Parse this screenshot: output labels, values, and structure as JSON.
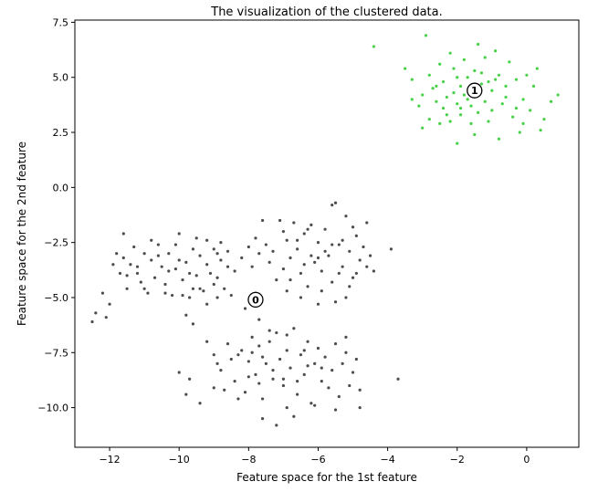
{
  "chart_data": {
    "type": "scatter",
    "title": "The visualization of the clustered data.",
    "xlabel": "Feature space for the 1st feature",
    "ylabel": "Feature space for the 2nd feature",
    "xlim": [
      -13.0,
      1.5
    ],
    "ylim": [
      -11.8,
      7.6
    ],
    "xticks": [
      -12,
      -10,
      -8,
      -6,
      -4,
      -2,
      0
    ],
    "xtick_labels": [
      "−12",
      "−10",
      "−8",
      "−6",
      "−4",
      "−2",
      "0"
    ],
    "yticks": [
      -10.0,
      -7.5,
      -5.0,
      -2.5,
      0.0,
      2.5,
      5.0,
      7.5
    ],
    "ytick_labels": [
      "−10.0",
      "−7.5",
      "−5.0",
      "−2.5",
      "0.0",
      "2.5",
      "5.0",
      "7.5"
    ],
    "grid": false,
    "series": [
      {
        "color": "#3a3a3a",
        "points": [
          [
            -12.5,
            -6.1
          ],
          [
            -12.4,
            -5.7
          ],
          [
            -12.2,
            -4.8
          ],
          [
            -12.1,
            -5.9
          ],
          [
            -12.0,
            -5.3
          ],
          [
            -11.9,
            -3.5
          ],
          [
            -11.8,
            -3.0
          ],
          [
            -11.7,
            -3.9
          ],
          [
            -11.6,
            -3.2
          ],
          [
            -11.5,
            -4.6
          ],
          [
            -11.4,
            -3.5
          ],
          [
            -11.3,
            -2.7
          ],
          [
            -11.2,
            -3.9
          ],
          [
            -11.1,
            -4.3
          ],
          [
            -11.0,
            -3.0
          ],
          [
            -10.9,
            -4.8
          ],
          [
            -10.8,
            -3.3
          ],
          [
            -10.7,
            -4.1
          ],
          [
            -10.6,
            -2.6
          ],
          [
            -10.5,
            -3.6
          ],
          [
            -10.4,
            -4.4
          ],
          [
            -10.3,
            -3.0
          ],
          [
            -10.2,
            -4.9
          ],
          [
            -10.1,
            -3.7
          ],
          [
            -10.0,
            -2.1
          ],
          [
            -9.9,
            -4.2
          ],
          [
            -9.8,
            -3.4
          ],
          [
            -9.7,
            -5.0
          ],
          [
            -9.6,
            -2.8
          ],
          [
            -9.5,
            -4.0
          ],
          [
            -9.4,
            -3.1
          ],
          [
            -9.3,
            -4.7
          ],
          [
            -9.2,
            -2.4
          ],
          [
            -9.1,
            -3.9
          ],
          [
            -9.0,
            -4.4
          ],
          [
            -8.9,
            -3.0
          ],
          [
            -8.8,
            -2.5
          ],
          [
            -8.7,
            -4.6
          ],
          [
            -8.6,
            -3.6
          ],
          [
            -8.5,
            -4.9
          ],
          [
            -11.6,
            -2.1
          ],
          [
            -11.5,
            -4.0
          ],
          [
            -11.2,
            -3.6
          ],
          [
            -11.0,
            -4.6
          ],
          [
            -10.8,
            -2.4
          ],
          [
            -10.6,
            -3.1
          ],
          [
            -10.4,
            -4.8
          ],
          [
            -10.3,
            -3.8
          ],
          [
            -10.1,
            -2.6
          ],
          [
            -10.0,
            -3.3
          ],
          [
            -9.9,
            -4.9
          ],
          [
            -9.7,
            -3.9
          ],
          [
            -9.5,
            -2.3
          ],
          [
            -9.4,
            -4.6
          ],
          [
            -9.2,
            -3.5
          ],
          [
            -9.0,
            -2.8
          ],
          [
            -8.9,
            -4.1
          ],
          [
            -8.8,
            -3.3
          ],
          [
            -8.6,
            -2.9
          ],
          [
            -8.4,
            -3.8
          ],
          [
            -8.2,
            -3.2
          ],
          [
            -8.0,
            -2.7
          ],
          [
            -7.9,
            -3.6
          ],
          [
            -7.7,
            -3.0
          ],
          [
            -7.5,
            -2.6
          ],
          [
            -7.4,
            -3.4
          ],
          [
            -7.3,
            -2.9
          ],
          [
            -7.1,
            -1.5
          ],
          [
            -7.0,
            -3.7
          ],
          [
            -6.9,
            -2.4
          ],
          [
            -6.8,
            -3.2
          ],
          [
            -6.7,
            -1.6
          ],
          [
            -6.6,
            -2.8
          ],
          [
            -6.5,
            -3.9
          ],
          [
            -6.4,
            -2.1
          ],
          [
            -6.3,
            -4.5
          ],
          [
            -6.2,
            -1.7
          ],
          [
            -6.1,
            -3.4
          ],
          [
            -6.0,
            -2.5
          ],
          [
            -5.9,
            -3.8
          ],
          [
            -5.8,
            -1.9
          ],
          [
            -5.7,
            -3.1
          ],
          [
            -5.6,
            -4.3
          ],
          [
            -5.5,
            -0.7
          ],
          [
            -5.4,
            -2.6
          ],
          [
            -5.3,
            -3.6
          ],
          [
            -5.2,
            -1.3
          ],
          [
            -5.1,
            -2.9
          ],
          [
            -5.0,
            -4.1
          ],
          [
            -4.9,
            -2.2
          ],
          [
            -4.8,
            -3.3
          ],
          [
            -4.7,
            -2.7
          ],
          [
            -4.6,
            -3.6
          ],
          [
            -4.5,
            -3.1
          ],
          [
            -4.4,
            -3.8
          ],
          [
            -4.6,
            -1.6
          ],
          [
            -5.0,
            -1.8
          ],
          [
            -5.2,
            -5.0
          ],
          [
            -5.6,
            -0.8
          ],
          [
            -6.0,
            -5.3
          ],
          [
            -6.5,
            -5.0
          ],
          [
            -6.9,
            -4.7
          ],
          [
            -7.2,
            -4.2
          ],
          [
            -7.6,
            -1.5
          ],
          [
            -7.8,
            -2.3
          ],
          [
            -6.2,
            -3.1
          ],
          [
            -5.8,
            -2.9
          ],
          [
            -6.4,
            -3.5
          ],
          [
            -5.4,
            -3.9
          ],
          [
            -6.0,
            -3.2
          ],
          [
            -5.6,
            -2.6
          ],
          [
            -6.6,
            -2.4
          ],
          [
            -6.8,
            -4.2
          ],
          [
            -5.3,
            -2.4
          ],
          [
            -4.9,
            -3.9
          ],
          [
            -5.1,
            -4.5
          ],
          [
            -6.3,
            -1.9
          ],
          [
            -7.0,
            -2.0
          ],
          [
            -5.9,
            -4.7
          ],
          [
            -5.5,
            -5.2
          ],
          [
            -9.6,
            -4.6
          ],
          [
            -9.8,
            -5.8
          ],
          [
            -9.6,
            -6.2
          ],
          [
            -9.2,
            -5.3
          ],
          [
            -8.9,
            -5.0
          ],
          [
            -8.1,
            -5.5
          ],
          [
            -7.8,
            -4.8
          ],
          [
            -7.7,
            -6.0
          ],
          [
            -3.9,
            -2.8
          ],
          [
            -3.7,
            -8.7
          ],
          [
            -9.2,
            -7.0
          ],
          [
            -9.0,
            -7.6
          ],
          [
            -8.8,
            -8.3
          ],
          [
            -8.6,
            -7.1
          ],
          [
            -8.4,
            -8.8
          ],
          [
            -8.2,
            -7.4
          ],
          [
            -8.1,
            -9.3
          ],
          [
            -8.0,
            -7.9
          ],
          [
            -7.9,
            -6.8
          ],
          [
            -7.8,
            -8.5
          ],
          [
            -7.7,
            -7.2
          ],
          [
            -7.6,
            -9.6
          ],
          [
            -7.5,
            -8.0
          ],
          [
            -7.4,
            -7.0
          ],
          [
            -7.3,
            -8.7
          ],
          [
            -7.2,
            -6.6
          ],
          [
            -7.1,
            -7.8
          ],
          [
            -7.0,
            -9.0
          ],
          [
            -6.9,
            -7.4
          ],
          [
            -6.8,
            -8.2
          ],
          [
            -6.7,
            -6.4
          ],
          [
            -6.6,
            -9.4
          ],
          [
            -6.5,
            -7.6
          ],
          [
            -6.4,
            -8.5
          ],
          [
            -6.3,
            -7.0
          ],
          [
            -6.2,
            -9.8
          ],
          [
            -6.1,
            -8.0
          ],
          [
            -6.0,
            -7.3
          ],
          [
            -5.9,
            -8.8
          ],
          [
            -5.8,
            -7.7
          ],
          [
            -5.7,
            -9.1
          ],
          [
            -5.6,
            -8.3
          ],
          [
            -5.5,
            -7.1
          ],
          [
            -5.4,
            -9.5
          ],
          [
            -5.3,
            -8.0
          ],
          [
            -5.2,
            -7.5
          ],
          [
            -5.1,
            -9.0
          ],
          [
            -5.0,
            -8.4
          ],
          [
            -4.9,
            -7.8
          ],
          [
            -4.8,
            -9.2
          ],
          [
            -4.8,
            -10.0
          ],
          [
            -5.5,
            -10.1
          ],
          [
            -6.1,
            -9.9
          ],
          [
            -6.7,
            -10.4
          ],
          [
            -7.2,
            -10.8
          ],
          [
            -7.6,
            -10.5
          ],
          [
            -6.9,
            -10.0
          ],
          [
            -7.4,
            -6.5
          ],
          [
            -6.9,
            -6.7
          ],
          [
            -8.5,
            -7.8
          ],
          [
            -8.9,
            -8.0
          ],
          [
            -8.3,
            -7.6
          ],
          [
            -7.9,
            -7.5
          ],
          [
            -7.3,
            -8.3
          ],
          [
            -6.6,
            -8.8
          ],
          [
            -6.3,
            -8.1
          ],
          [
            -5.9,
            -8.2
          ],
          [
            -7.0,
            -8.7
          ],
          [
            -7.6,
            -7.7
          ],
          [
            -6.4,
            -7.4
          ],
          [
            -9.8,
            -9.4
          ],
          [
            -9.4,
            -9.8
          ],
          [
            -9.0,
            -9.1
          ],
          [
            -10.0,
            -8.4
          ],
          [
            -9.7,
            -8.7
          ],
          [
            -8.7,
            -9.2
          ],
          [
            -8.3,
            -9.6
          ],
          [
            -8.0,
            -8.6
          ],
          [
            -7.7,
            -8.9
          ],
          [
            -5.2,
            -6.8
          ]
        ]
      },
      {
        "color": "#33cc33",
        "points": [
          [
            -4.4,
            6.4
          ],
          [
            -3.5,
            5.4
          ],
          [
            -3.3,
            4.9
          ],
          [
            -3.1,
            3.7
          ],
          [
            -3.0,
            4.2
          ],
          [
            -3.0,
            2.7
          ],
          [
            -2.9,
            6.9
          ],
          [
            -2.8,
            5.1
          ],
          [
            -2.7,
            4.5
          ],
          [
            -2.6,
            3.9
          ],
          [
            -2.5,
            5.6
          ],
          [
            -2.4,
            4.8
          ],
          [
            -2.3,
            3.3
          ],
          [
            -2.2,
            6.1
          ],
          [
            -2.1,
            4.3
          ],
          [
            -2.0,
            5.0
          ],
          [
            -2.0,
            2.0
          ],
          [
            -1.9,
            3.6
          ],
          [
            -1.8,
            5.8
          ],
          [
            -1.7,
            4.0
          ],
          [
            -1.6,
            2.9
          ],
          [
            -1.5,
            5.3
          ],
          [
            -1.4,
            6.5
          ],
          [
            -1.4,
            3.4
          ],
          [
            -1.3,
            4.7
          ],
          [
            -1.2,
            5.9
          ],
          [
            -1.1,
            3.0
          ],
          [
            -1.0,
            4.4
          ],
          [
            -0.9,
            6.2
          ],
          [
            -0.8,
            2.2
          ],
          [
            -0.8,
            5.1
          ],
          [
            -0.7,
            3.8
          ],
          [
            -0.6,
            4.6
          ],
          [
            -0.5,
            5.7
          ],
          [
            -0.4,
            3.2
          ],
          [
            -0.3,
            4.9
          ],
          [
            -0.2,
            2.5
          ],
          [
            -0.1,
            4.0
          ],
          [
            0.0,
            5.1
          ],
          [
            0.1,
            3.5
          ],
          [
            0.2,
            4.6
          ],
          [
            0.3,
            5.4
          ],
          [
            0.4,
            2.6
          ],
          [
            0.5,
            3.1
          ],
          [
            0.7,
            3.9
          ],
          [
            0.9,
            4.2
          ],
          [
            -3.3,
            4.0
          ],
          [
            -2.8,
            3.1
          ],
          [
            -2.5,
            2.9
          ],
          [
            -1.5,
            2.4
          ],
          [
            -2.3,
            4.1
          ],
          [
            -2.0,
            3.8
          ],
          [
            -1.9,
            4.6
          ],
          [
            -1.6,
            3.7
          ],
          [
            -1.4,
            4.2
          ],
          [
            -1.2,
            3.9
          ],
          [
            -1.1,
            4.8
          ],
          [
            -1.9,
            3.3
          ],
          [
            -2.1,
            5.4
          ],
          [
            -1.0,
            3.5
          ],
          [
            -0.6,
            4.1
          ],
          [
            -1.7,
            5.0
          ],
          [
            -2.4,
            3.6
          ],
          [
            -1.3,
            5.2
          ],
          [
            -0.9,
            4.9
          ],
          [
            -2.6,
            4.6
          ],
          [
            -1.8,
            4.2
          ],
          [
            -2.2,
            3.0
          ],
          [
            -0.3,
            3.6
          ],
          [
            -0.1,
            2.9
          ]
        ]
      }
    ],
    "centers": [
      {
        "label": "0",
        "x": -7.8,
        "y": -5.1
      },
      {
        "label": "1",
        "x": -1.5,
        "y": 4.4
      }
    ]
  }
}
